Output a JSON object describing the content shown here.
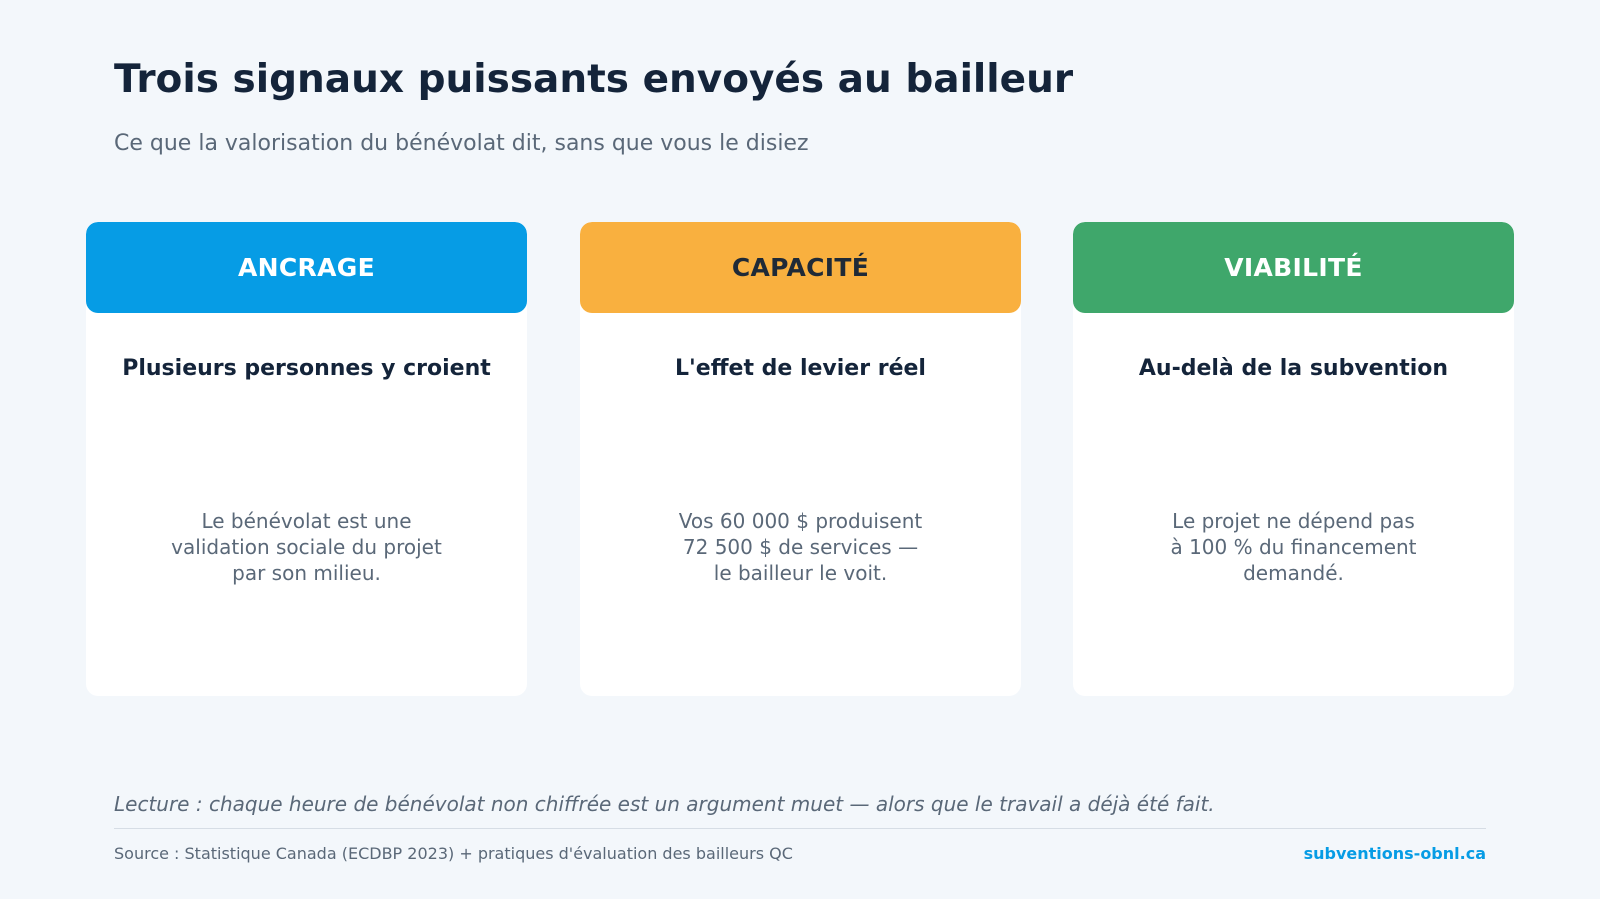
{
  "header": {
    "title": "Trois signaux puissants envoyés au bailleur",
    "subtitle": "Ce que la valorisation du bénévolat dit, sans que vous le disiez"
  },
  "colors": {
    "ancrage": "#069ce5",
    "capacite": "#f9b03f",
    "viabilite": "#3fa76b",
    "title": "#14243a",
    "muted": "#5a6878",
    "background": "#f3f7fb"
  },
  "cards": [
    {
      "label": "ANCRAGE",
      "heading": "Plusieurs personnes y croient",
      "body": [
        "Le bénévolat est une",
        "validation sociale du projet",
        "par son milieu."
      ]
    },
    {
      "label": "CAPACITÉ",
      "heading": "L'effet de levier réel",
      "body": [
        "Vos 60 000 $ produisent",
        "72 500 $ de services —",
        "le bailleur le voit."
      ]
    },
    {
      "label": "VIABILITÉ",
      "heading": "Au-delà de la subvention",
      "body": [
        "Le projet ne dépend pas",
        "à 100 % du financement",
        "demandé."
      ]
    }
  ],
  "footer": {
    "reading": "Lecture : chaque heure de bénévolat non chiffrée est un argument muet — alors que le travail a déjà été fait.",
    "source": "Source : Statistique Canada (ECDBP 2023) + pratiques d'évaluation des bailleurs QC",
    "website": "subventions-obnl.ca"
  }
}
